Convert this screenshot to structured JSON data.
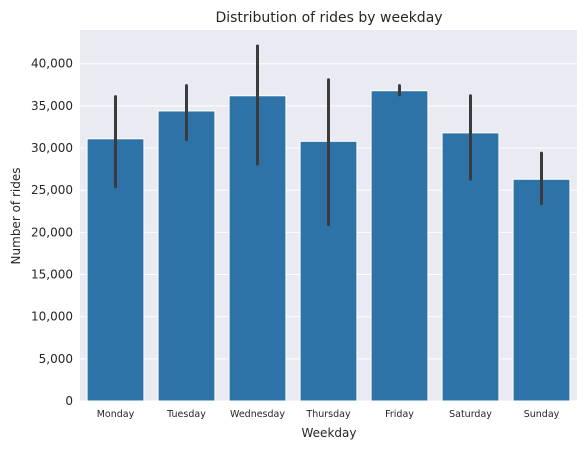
{
  "chart_data": {
    "type": "bar",
    "title": "Distribution of rides by weekday",
    "xlabel": "Weekday",
    "ylabel": "Number of rides",
    "categories": [
      "Monday",
      "Tuesday",
      "Wednesday",
      "Thursday",
      "Friday",
      "Saturday",
      "Sunday"
    ],
    "values": [
      31100,
      34400,
      36200,
      30800,
      36800,
      31800,
      26300
    ],
    "error_low": [
      25400,
      31000,
      28100,
      20900,
      36300,
      26300,
      23400
    ],
    "error_high": [
      36100,
      37400,
      42100,
      38100,
      37400,
      36200,
      29400
    ],
    "ylim": [
      0,
      44000
    ],
    "yticks": [
      0,
      5000,
      10000,
      15000,
      20000,
      25000,
      30000,
      35000,
      40000
    ],
    "ytick_labels": [
      "0",
      "5,000",
      "10,000",
      "15,000",
      "20,000",
      "25,000",
      "30,000",
      "35,000",
      "40,000"
    ],
    "grid": true,
    "legend": "none",
    "colors": {
      "bar": "#2e73a8",
      "bar_edge": "#ffffff",
      "error_bar": "#3b3b3b",
      "plot_background": "#eaeaf2",
      "grid": "#ffffff",
      "text": "#262626"
    }
  }
}
